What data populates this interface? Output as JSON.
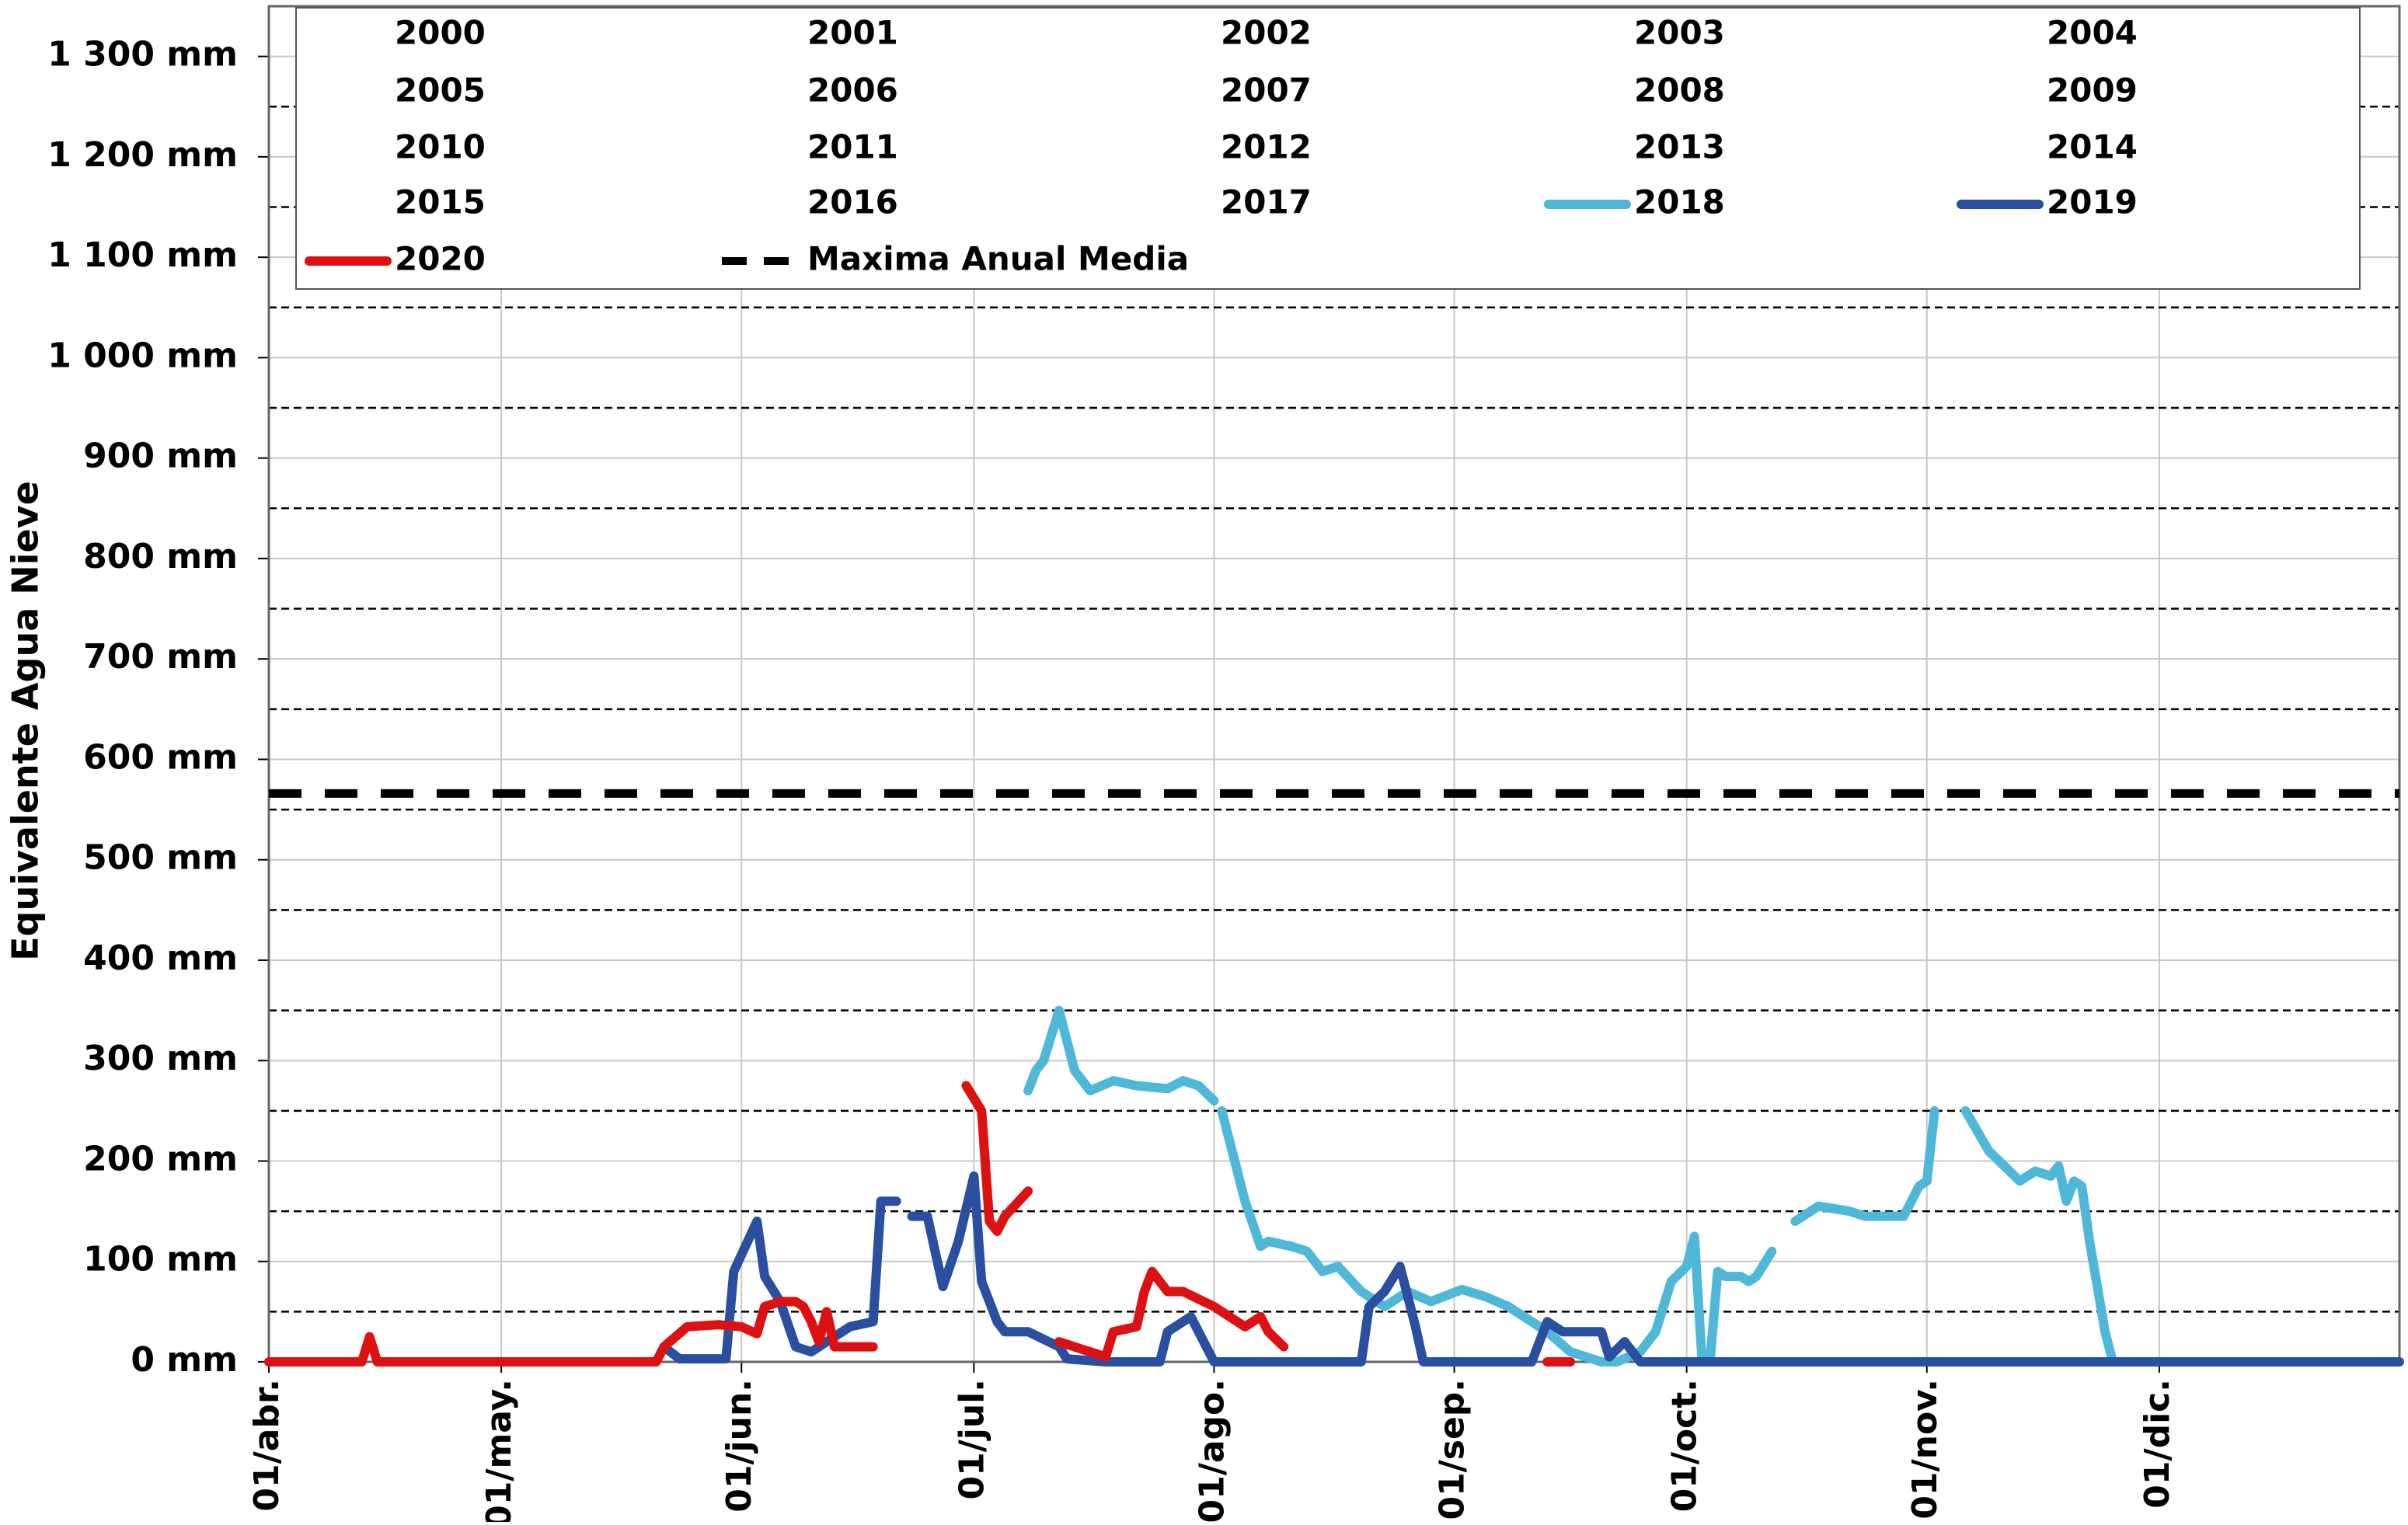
{
  "chart_data": {
    "type": "line",
    "y_label": "Equivalente Agua Nieve",
    "xlim": [
      0,
      275
    ],
    "xticks": [
      {
        "value": 0,
        "label": "01/abr."
      },
      {
        "value": 30,
        "label": "01/may."
      },
      {
        "value": 61,
        "label": "01/jun."
      },
      {
        "value": 91,
        "label": "01/jul."
      },
      {
        "value": 122,
        "label": "01/ago."
      },
      {
        "value": 153,
        "label": "01/sep."
      },
      {
        "value": 183,
        "label": "01/oct."
      },
      {
        "value": 214,
        "label": "01/nov."
      },
      {
        "value": 244,
        "label": "01/dic."
      }
    ],
    "ylim": [
      0,
      1350
    ],
    "yticks": [
      {
        "value": 0,
        "label": "0 mm"
      },
      {
        "value": 100,
        "label": "100 mm"
      },
      {
        "value": 200,
        "label": "200 mm"
      },
      {
        "value": 300,
        "label": "300 mm"
      },
      {
        "value": 400,
        "label": "400 mm"
      },
      {
        "value": 500,
        "label": "500 mm"
      },
      {
        "value": 600,
        "label": "600 mm"
      },
      {
        "value": 700,
        "label": "700 mm"
      },
      {
        "value": 800,
        "label": "800 mm"
      },
      {
        "value": 900,
        "label": "900 mm"
      },
      {
        "value": 1000,
        "label": "1 000 mm"
      },
      {
        "value": 1100,
        "label": "1 100 mm"
      },
      {
        "value": 1200,
        "label": "1 200 mm"
      },
      {
        "value": 1300,
        "label": "1 300 mm"
      }
    ],
    "minor_yticks": [
      50,
      150,
      250,
      350,
      450,
      550,
      650,
      750,
      850,
      950,
      1050,
      1150,
      1250
    ],
    "grid": true,
    "series": [
      {
        "name": "2000",
        "x": [],
        "values": []
      },
      {
        "name": "2001",
        "x": [],
        "values": []
      },
      {
        "name": "2002",
        "x": [],
        "values": []
      },
      {
        "name": "2003",
        "x": [],
        "values": []
      },
      {
        "name": "2004",
        "x": [],
        "values": []
      },
      {
        "name": "2005",
        "x": [],
        "values": []
      },
      {
        "name": "2006",
        "x": [],
        "values": []
      },
      {
        "name": "2007",
        "x": [],
        "values": []
      },
      {
        "name": "2008",
        "x": [],
        "values": []
      },
      {
        "name": "2009",
        "x": [],
        "values": []
      },
      {
        "name": "2010",
        "x": [],
        "values": []
      },
      {
        "name": "2011",
        "x": [],
        "values": []
      },
      {
        "name": "2012",
        "x": [],
        "values": []
      },
      {
        "name": "2013",
        "x": [],
        "values": []
      },
      {
        "name": "2014",
        "x": [],
        "values": []
      },
      {
        "name": "2015",
        "x": [],
        "values": []
      },
      {
        "name": "2016",
        "x": [],
        "values": []
      },
      {
        "name": "2017",
        "x": [],
        "values": []
      },
      {
        "name": "2018",
        "color": "#4fb8d8",
        "x": [
          98,
          99,
          100,
          102,
          104,
          106,
          109,
          112,
          116,
          118,
          120,
          122,
          null,
          123,
          126,
          128,
          129,
          132,
          134,
          136,
          138,
          141,
          144,
          147,
          150,
          154,
          157,
          160,
          162,
          165,
          168,
          172,
          174,
          177,
          179,
          181,
          183,
          184,
          185,
          186,
          187,
          188,
          190,
          191,
          192,
          194,
          null,
          197,
          200,
          204,
          206,
          211,
          213,
          214,
          215,
          null,
          219,
          222,
          226,
          228,
          230,
          231,
          232,
          233,
          234,
          235,
          237,
          238
        ],
        "values": [
          270,
          290,
          300,
          350,
          290,
          270,
          280,
          275,
          272,
          280,
          275,
          260,
          null,
          250,
          160,
          115,
          120,
          115,
          110,
          90,
          95,
          70,
          55,
          70,
          60,
          72,
          65,
          55,
          45,
          30,
          10,
          0,
          0,
          10,
          30,
          80,
          95,
          125,
          0,
          0,
          90,
          85,
          85,
          80,
          85,
          110,
          null,
          140,
          155,
          150,
          145,
          145,
          175,
          180,
          250,
          null,
          250,
          210,
          180,
          190,
          185,
          195,
          160,
          180,
          175,
          120,
          30,
          0
        ]
      },
      {
        "name": "2019",
        "color": "#2a4fa0",
        "x": [
          51,
          53,
          59,
          60,
          63,
          64,
          66,
          68,
          70,
          72,
          75,
          78,
          79,
          81,
          null,
          83,
          85,
          87,
          89,
          91,
          92,
          94,
          95,
          98,
          102,
          103,
          108,
          115,
          116,
          119,
          120,
          122,
          141,
          142,
          144,
          146,
          148,
          149,
          163,
          165,
          167,
          170,
          172,
          173,
          175,
          177,
          275
        ],
        "values": [
          15,
          3,
          3,
          90,
          140,
          85,
          60,
          15,
          10,
          20,
          35,
          40,
          160,
          160,
          null,
          145,
          145,
          75,
          120,
          185,
          80,
          40,
          30,
          30,
          15,
          3,
          0,
          0,
          30,
          45,
          30,
          0,
          0,
          55,
          70,
          95,
          35,
          0,
          0,
          40,
          30,
          30,
          30,
          5,
          20,
          0,
          0
        ]
      },
      {
        "name": "2020",
        "color": "#dd1111",
        "x": [
          0,
          12,
          13,
          14,
          50,
          51,
          54,
          58,
          61,
          63,
          64,
          66,
          68,
          69,
          70,
          71,
          72,
          73,
          75,
          78,
          null,
          90,
          92,
          93,
          94,
          95,
          98,
          null,
          102,
          106,
          108,
          109,
          112,
          113,
          114,
          116,
          118,
          122,
          126,
          128,
          129,
          131,
          null,
          165,
          168
        ],
        "values": [
          0,
          0,
          25,
          0,
          0,
          15,
          35,
          37,
          35,
          28,
          55,
          60,
          60,
          55,
          40,
          20,
          50,
          15,
          15,
          15,
          null,
          275,
          250,
          140,
          130,
          145,
          170,
          null,
          20,
          10,
          5,
          30,
          35,
          70,
          90,
          70,
          70,
          55,
          35,
          45,
          30,
          15,
          null,
          0,
          0
        ]
      }
    ],
    "reference_line": {
      "name": "Maxima Anual Media",
      "value": 566,
      "color": "#000000",
      "dashed": true
    }
  }
}
